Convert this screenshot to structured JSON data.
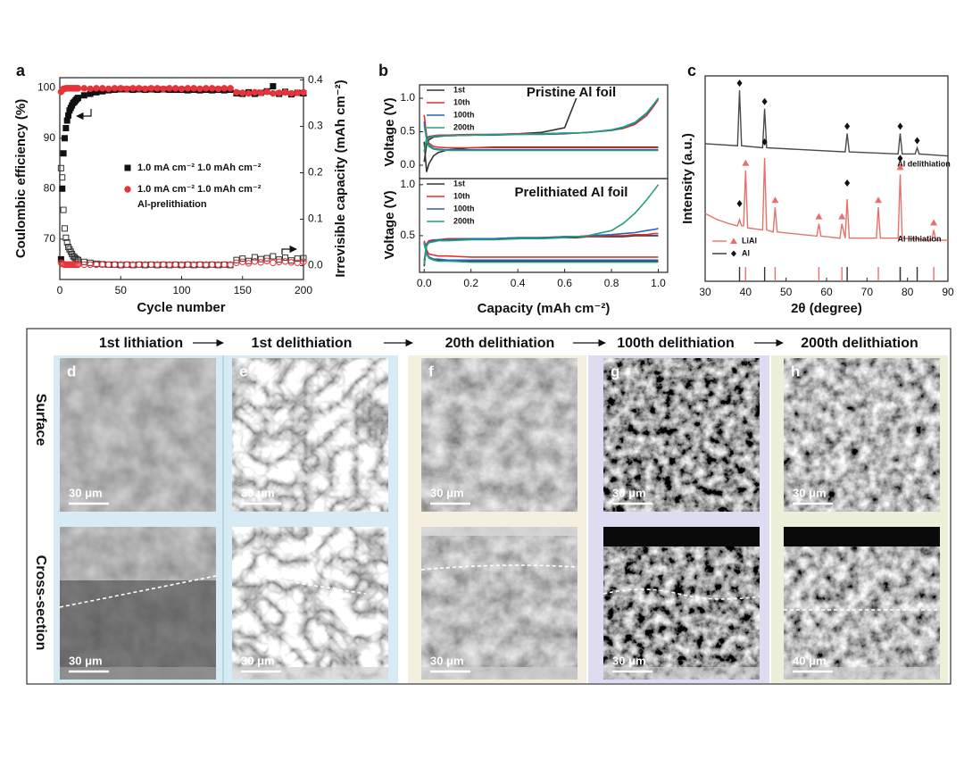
{
  "chart_data": [
    {
      "type": "scatter",
      "panel": "a",
      "xlabel": "Cycle number",
      "ylabel": "Coulombic efficiency (%)",
      "y2label": "Irrevisible capacity (mAh cm⁻²)",
      "x": [
        1,
        2,
        3,
        4,
        5,
        6,
        7,
        8,
        9,
        10,
        11,
        12,
        13,
        14,
        15,
        20,
        25,
        30,
        35,
        40,
        45,
        50,
        55,
        60,
        65,
        70,
        75,
        80,
        85,
        90,
        95,
        100,
        105,
        110,
        115,
        120,
        125,
        130,
        135,
        140,
        145,
        150,
        155,
        160,
        165,
        170,
        175,
        180,
        185,
        190,
        195,
        200
      ],
      "xlim": [
        0,
        200
      ],
      "xticks": [
        0,
        50,
        100,
        150,
        200
      ],
      "ylim": [
        62,
        102
      ],
      "yticks": [
        70,
        80,
        90,
        100
      ],
      "y2lim": [
        -0.03,
        0.405
      ],
      "y2ticks": [
        {
          "value": 0,
          "label": "0.0"
        },
        0.1,
        0.2,
        0.3,
        0.4
      ],
      "series": [
        {
          "name": "1.0 mA cm⁻² 1.0 mAh cm⁻²",
          "color": "#111111",
          "marker": "square",
          "filled": true,
          "values": [
            66,
            80,
            87,
            90,
            92,
            93.5,
            94.5,
            95.5,
            96,
            96.5,
            97,
            97.2,
            97.5,
            97.8,
            98,
            98.5,
            98.8,
            99.1,
            99.3,
            99.5,
            99.6,
            99.7,
            99.7,
            99.6,
            99.7,
            99.6,
            99.7,
            99.6,
            99.7,
            99.6,
            99.6,
            99.6,
            99.5,
            99.6,
            99.5,
            99.6,
            99.5,
            99.6,
            99.5,
            99.6,
            98.9,
            98.8,
            99.1,
            98.8,
            99.0,
            99.3,
            100.3,
            98.8,
            99.2,
            98.7,
            99.0,
            98.9
          ]
        },
        {
          "name": "1.0 mA cm⁻² 1.0 mAh cm⁻²",
          "note": "Al-prelithiation",
          "color": "#e8333a",
          "marker": "circle",
          "filled": true,
          "values": [
            99.2,
            99.6,
            99.8,
            99.8,
            99.9,
            99.9,
            99.9,
            99.9,
            99.9,
            99.9,
            99.9,
            99.9,
            99.9,
            99.9,
            99.9,
            99.9,
            99.8,
            99.9,
            99.9,
            99.8,
            99.9,
            99.9,
            99.8,
            99.9,
            99.9,
            99.8,
            99.9,
            99.9,
            99.8,
            99.9,
            99.9,
            99.8,
            99.9,
            99.9,
            99.8,
            99.9,
            99.9,
            99.8,
            99.9,
            99.9,
            99.1,
            99.0,
            98.9,
            99.1,
            99.0,
            99.2,
            98.9,
            99.0,
            99.1,
            98.9,
            99.0,
            99.1
          ]
        },
        {
          "color": "#333333",
          "marker": "square",
          "filled": false,
          "axis": "y2",
          "values": [
            0.21,
            0.19,
            0.12,
            0.08,
            0.06,
            0.05,
            0.04,
            0.035,
            0.03,
            0.025,
            0.02,
            0.018,
            0.015,
            0.013,
            0.012,
            0.008,
            0.006,
            0.004,
            0.003,
            0.002,
            0.002,
            0.001,
            0.002,
            0.001,
            0.002,
            0.001,
            0.002,
            0.001,
            0.002,
            0.001,
            0.002,
            0.001,
            0.002,
            0.001,
            0.002,
            0.001,
            0.002,
            0.001,
            0.002,
            0.001,
            0.012,
            0.015,
            0.01,
            0.018,
            0.014,
            0.016,
            0.02,
            0.013,
            0.017,
            0.011,
            0.015,
            0.016
          ]
        },
        {
          "color": "#e8333a",
          "marker": "circle",
          "filled": false,
          "axis": "y2",
          "values": [
            0.006,
            0.004,
            0.003,
            0.002,
            0.002,
            0.002,
            0.002,
            0.002,
            0.002,
            0.002,
            0.002,
            0.002,
            0.002,
            0.002,
            0.002,
            0.002,
            0.002,
            0.002,
            0.002,
            0.002,
            0.002,
            0.002,
            0.002,
            0.002,
            0.002,
            0.002,
            0.002,
            0.002,
            0.002,
            0.002,
            0.002,
            0.002,
            0.002,
            0.002,
            0.002,
            0.002,
            0.002,
            0.002,
            0.002,
            0.002,
            0.006,
            0.008,
            0.005,
            0.009,
            0.007,
            0.01,
            0.006,
            0.008,
            0.009,
            0.007,
            0.006,
            0.008
          ]
        }
      ]
    },
    {
      "type": "profile",
      "panel": "b",
      "title": "Pristine Al foil",
      "ylabel": "Voltage (V)",
      "x": [
        0,
        0.01,
        0.02,
        0.04,
        0.06,
        0.1,
        0.2,
        0.3,
        0.4,
        0.5,
        0.6,
        0.65,
        0.7,
        0.8,
        0.85,
        0.9,
        0.95,
        0.98,
        1.0
      ],
      "xlim": [
        -0.02,
        1.04
      ],
      "ylim": [
        -0.2,
        1.2
      ],
      "yticks": [
        {
          "value": 0,
          "label": "0.0"
        },
        0.5,
        {
          "value": 1,
          "label": "1.0"
        }
      ],
      "series": [
        {
          "name": "1st",
          "color": "#333333",
          "discharge": [
            0.35,
            -0.1,
            0.02,
            0.14,
            0.19,
            0.23,
            0.26,
            0.27,
            0.27,
            0.27,
            0.27,
            0.27,
            0.27,
            0.27,
            0.27,
            0.27,
            0.27,
            0.27,
            0.27
          ],
          "charge": [
            0.05,
            0.3,
            0.38,
            0.42,
            0.43,
            0.44,
            0.45,
            0.46,
            0.47,
            0.49,
            0.56,
            1.0,
            null,
            null,
            null,
            null,
            null,
            null,
            null
          ]
        },
        {
          "name": "10th",
          "color": "#e03131",
          "discharge": [
            0.75,
            0.45,
            0.33,
            0.28,
            0.27,
            0.26,
            0.26,
            0.26,
            0.26,
            0.26,
            0.26,
            0.26,
            0.26,
            0.26,
            0.26,
            0.26,
            0.26,
            0.26,
            0.26
          ],
          "charge": [
            0.2,
            0.4,
            0.43,
            0.44,
            0.45,
            0.45,
            0.46,
            0.46,
            0.47,
            0.47,
            0.48,
            0.48,
            0.49,
            0.52,
            0.55,
            0.61,
            0.74,
            0.88,
            0.98
          ]
        },
        {
          "name": "100th",
          "color": "#2b5fb8",
          "discharge": [
            0.65,
            0.4,
            0.3,
            0.25,
            0.24,
            0.23,
            0.23,
            0.23,
            0.23,
            0.23,
            0.23,
            0.23,
            0.23,
            0.23,
            0.23,
            0.23,
            0.23,
            0.23,
            0.23
          ],
          "charge": [
            0.2,
            0.39,
            0.42,
            0.43,
            0.44,
            0.44,
            0.45,
            0.45,
            0.46,
            0.46,
            0.47,
            0.48,
            0.49,
            0.52,
            0.56,
            0.63,
            0.77,
            0.9,
            1.0
          ]
        },
        {
          "name": "200th",
          "color": "#22a07a",
          "discharge": [
            0.6,
            0.38,
            0.28,
            0.24,
            0.23,
            0.22,
            0.22,
            0.22,
            0.22,
            0.22,
            0.22,
            0.22,
            0.22,
            0.22,
            0.22,
            0.22,
            0.22,
            0.22,
            0.22
          ],
          "charge": [
            0.2,
            0.38,
            0.41,
            0.43,
            0.44,
            0.44,
            0.45,
            0.46,
            0.46,
            0.47,
            0.48,
            0.48,
            0.49,
            0.53,
            0.57,
            0.64,
            0.78,
            0.91,
            1.0
          ]
        }
      ]
    },
    {
      "type": "profile",
      "title": "Prelithiated Al foil",
      "ylabel": "Voltage (V)",
      "xlabel": "Capacity (mAh cm⁻²)",
      "x": [
        0,
        0.01,
        0.02,
        0.04,
        0.06,
        0.1,
        0.2,
        0.3,
        0.4,
        0.5,
        0.6,
        0.65,
        0.7,
        0.8,
        0.85,
        0.9,
        0.95,
        0.98,
        1.0
      ],
      "xlim": [
        -0.02,
        1.04
      ],
      "xticks": [
        {
          "value": 0,
          "label": "0.0"
        },
        0.2,
        0.4,
        0.6,
        0.8,
        {
          "value": 1,
          "label": "1.0"
        }
      ],
      "ylim": [
        0.14,
        1.06
      ],
      "yticks": [
        0.5,
        {
          "value": 1,
          "label": "1.0"
        }
      ],
      "series": [
        {
          "name": "1st",
          "color": "#333333",
          "discharge": [
            0.42,
            0.33,
            0.29,
            0.27,
            0.26,
            0.26,
            0.25,
            0.25,
            0.25,
            0.25,
            0.25,
            0.25,
            0.25,
            0.25,
            0.25,
            0.25,
            0.25,
            0.25,
            0.25
          ],
          "charge": [
            0.2,
            0.4,
            0.44,
            0.45,
            0.46,
            0.46,
            0.47,
            0.47,
            0.47,
            0.48,
            0.48,
            0.48,
            0.49,
            0.49,
            0.49,
            0.5,
            0.5,
            0.5,
            0.5
          ]
        },
        {
          "name": "10th",
          "color": "#e03131",
          "discharge": [
            0.45,
            0.36,
            0.32,
            0.31,
            0.3,
            0.3,
            0.29,
            0.29,
            0.29,
            0.29,
            0.29,
            0.29,
            0.29,
            0.29,
            0.29,
            0.29,
            0.29,
            0.29,
            0.29
          ],
          "charge": [
            0.25,
            0.42,
            0.45,
            0.46,
            0.46,
            0.47,
            0.47,
            0.47,
            0.48,
            0.48,
            0.49,
            0.49,
            0.49,
            0.5,
            0.5,
            0.51,
            0.51,
            0.52,
            0.52
          ]
        },
        {
          "name": "100th",
          "color": "#2b5fb8",
          "discharge": [
            0.44,
            0.33,
            0.29,
            0.27,
            0.27,
            0.26,
            0.26,
            0.26,
            0.26,
            0.26,
            0.26,
            0.26,
            0.26,
            0.26,
            0.26,
            0.26,
            0.26,
            0.26,
            0.26
          ],
          "charge": [
            0.22,
            0.41,
            0.44,
            0.45,
            0.46,
            0.46,
            0.47,
            0.47,
            0.48,
            0.48,
            0.49,
            0.49,
            0.5,
            0.51,
            0.52,
            0.53,
            0.55,
            0.56,
            0.57
          ]
        },
        {
          "name": "200th",
          "color": "#22a07a",
          "discharge": [
            0.43,
            0.32,
            0.28,
            0.26,
            0.25,
            0.25,
            0.24,
            0.24,
            0.24,
            0.24,
            0.24,
            0.24,
            0.24,
            0.24,
            0.24,
            0.24,
            0.24,
            0.24,
            0.24
          ],
          "charge": [
            0.22,
            0.4,
            0.43,
            0.44,
            0.45,
            0.45,
            0.46,
            0.46,
            0.47,
            0.47,
            0.48,
            0.49,
            0.5,
            0.55,
            0.62,
            0.72,
            0.85,
            0.94,
            1.0
          ]
        }
      ]
    },
    {
      "type": "line",
      "panel": "c",
      "xlabel": "2θ (degree)",
      "ylabel": "Intensity (a.u.)",
      "xlim": [
        30,
        90
      ],
      "xticks": [
        30,
        40,
        50,
        60,
        70,
        80,
        90
      ],
      "ylim": [
        0,
        100
      ],
      "series": [
        {
          "label": "Al delithiation",
          "color": "#4a4a4a",
          "markers": [
            "Al"
          ],
          "x": [
            30,
            38,
            38.5,
            39,
            44.2,
            44.7,
            45.2,
            64.6,
            65.1,
            65.6,
            77.7,
            78.2,
            78.7,
            81.9,
            82.4,
            82.9,
            90
          ],
          "values": [
            67,
            66,
            93,
            66,
            65,
            84,
            65,
            63,
            72,
            63,
            62,
            72,
            62,
            62,
            65,
            62,
            61
          ]
        },
        {
          "label": "Al lithiation",
          "color": "#e8706c",
          "markers": [
            "LiAl",
            "Al"
          ],
          "x": [
            30,
            33,
            36,
            38,
            38.5,
            39,
            39.5,
            40,
            40.5,
            44.2,
            44.7,
            45.2,
            46.8,
            47.3,
            47.8,
            57.6,
            58.1,
            58.6,
            63.3,
            63.8,
            64.6,
            65.1,
            65.6,
            72.3,
            72.8,
            73.3,
            77.7,
            78.2,
            78.7,
            86,
            86.5,
            87,
            90
          ],
          "values": [
            33,
            30,
            28,
            27,
            30,
            27,
            27,
            54,
            26,
            25,
            60,
            25,
            24,
            36,
            24,
            22,
            28,
            22,
            21,
            28,
            21,
            40,
            21,
            21,
            36,
            21,
            21,
            52,
            21,
            20,
            25,
            20,
            20
          ]
        }
      ],
      "references": [
        {
          "name": "LiAl",
          "color": "#e8706c",
          "positions": [
            40.0,
            47.3,
            58.1,
            63.8,
            72.8,
            78.2,
            86.5
          ]
        },
        {
          "name": "Al",
          "color": "#333333",
          "positions": [
            38.5,
            44.7,
            65.1,
            78.2,
            82.4
          ]
        }
      ]
    }
  ],
  "sem": {
    "row_labels": [
      "Surface",
      "Cross-section"
    ],
    "columns": [
      {
        "header": "1st lithiation",
        "panel": "d",
        "scale_bars": [
          "30 μm",
          "30 μm"
        ]
      },
      {
        "header": "1st delithiation",
        "panel": "e",
        "scale_bars": [
          "30 μm",
          "30 μm"
        ]
      },
      {
        "header": "20th delithiation",
        "panel": "f",
        "scale_bars": [
          "30 μm",
          "30 μm"
        ]
      },
      {
        "header": "100th delithiation",
        "panel": "g",
        "scale_bars": [
          "30 μm",
          "30 μm"
        ]
      },
      {
        "header": "200th delithiation",
        "panel": "h",
        "scale_bars": [
          "30 μm",
          "40 μm"
        ]
      }
    ]
  }
}
